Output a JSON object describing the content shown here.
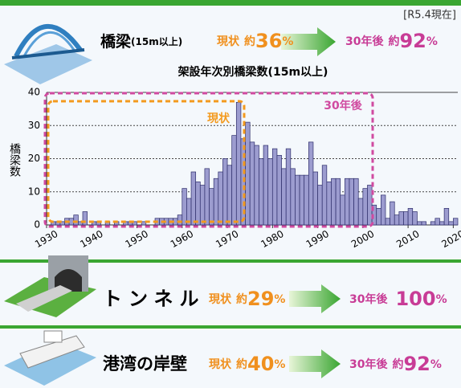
{
  "header": {
    "date": "[R5.4現在]"
  },
  "sections": [
    {
      "label": "橋梁",
      "note": "(15m以上)",
      "now": {
        "label": "現状",
        "prefix": "約",
        "value": 36,
        "unit": "%"
      },
      "future": {
        "label": "30年後",
        "prefix": "約",
        "value": 92,
        "unit": "%"
      }
    },
    {
      "label": "トンネル",
      "now": {
        "label": "現状",
        "prefix": "約",
        "value": 29,
        "unit": "%"
      },
      "future": {
        "label": "30年後",
        "value": 100,
        "unit": "%"
      }
    },
    {
      "label": "港湾の岸壁",
      "now": {
        "label": "現状",
        "prefix": "約",
        "value": 40,
        "unit": "%"
      },
      "future": {
        "label": "30年後",
        "prefix": "約",
        "value": 92,
        "unit": "%"
      }
    }
  ],
  "chart_data": {
    "type": "bar",
    "title": "架設年次別橋梁数(15m以上)",
    "ylabel": "橋梁数",
    "x": [
      1930,
      1931,
      1932,
      1933,
      1934,
      1935,
      1936,
      1937,
      1938,
      1939,
      1940,
      1941,
      1942,
      1943,
      1944,
      1945,
      1946,
      1947,
      1948,
      1949,
      1950,
      1951,
      1952,
      1953,
      1954,
      1955,
      1956,
      1957,
      1958,
      1959,
      1960,
      1961,
      1962,
      1963,
      1964,
      1965,
      1966,
      1967,
      1968,
      1969,
      1970,
      1971,
      1972,
      1973,
      1974,
      1975,
      1976,
      1977,
      1978,
      1979,
      1980,
      1981,
      1982,
      1983,
      1984,
      1985,
      1986,
      1987,
      1988,
      1989,
      1990,
      1991,
      1992,
      1993,
      1994,
      1995,
      1996,
      1997,
      1998,
      1999,
      2000,
      2001,
      2002,
      2003,
      2004,
      2005,
      2006,
      2007,
      2008,
      2009,
      2010,
      2011,
      2012,
      2013,
      2014,
      2015,
      2016,
      2017,
      2018,
      2019,
      2020
    ],
    "values": [
      0,
      1,
      1,
      1,
      2,
      2,
      3,
      1,
      4,
      0,
      1,
      1,
      0,
      1,
      0,
      1,
      0,
      1,
      1,
      1,
      0,
      1,
      0,
      0,
      2,
      2,
      2,
      2,
      2,
      3,
      11,
      8,
      16,
      13,
      12,
      17,
      11,
      14,
      16,
      20,
      18,
      27,
      37,
      26,
      31,
      25,
      24,
      20,
      24,
      20,
      23,
      21,
      17,
      23,
      17,
      15,
      15,
      15,
      25,
      16,
      12,
      18,
      13,
      14,
      14,
      9,
      14,
      14,
      14,
      8,
      11,
      12,
      6,
      5,
      9,
      2,
      7,
      3,
      4,
      4,
      5,
      4,
      1,
      1,
      0,
      1,
      2,
      1,
      5,
      1,
      2
    ],
    "color": "#9c9ccf",
    "xlim": [
      1930,
      2021
    ],
    "xticks": [
      1930,
      1940,
      1950,
      1960,
      1970,
      1980,
      1990,
      2000,
      2010,
      2020
    ],
    "ylim": [
      0,
      40
    ],
    "yticks": [
      0,
      10,
      20,
      30,
      40
    ],
    "grid": true,
    "annotations": [
      "現状",
      "30年後"
    ]
  }
}
